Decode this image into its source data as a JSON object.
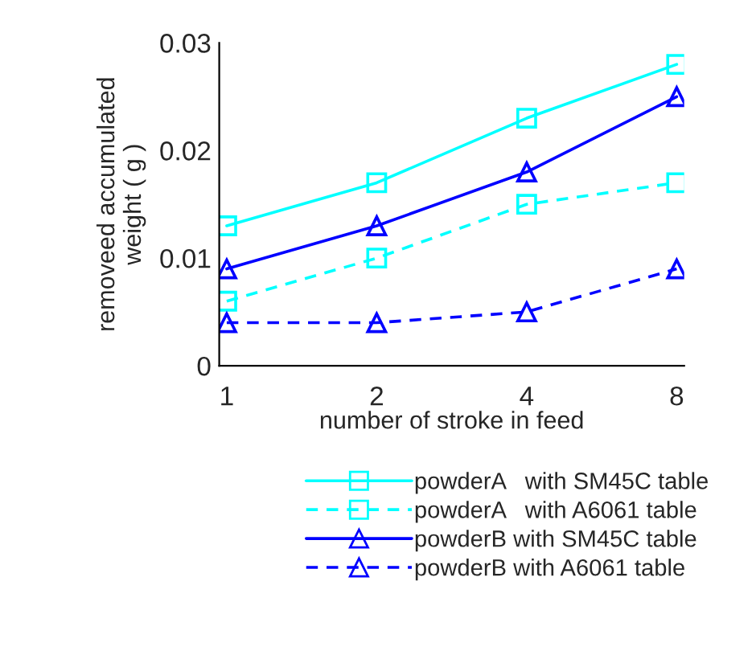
{
  "chart_data": {
    "type": "line",
    "xlabel": "number of stroke in feed",
    "ylabel": "removeed accumulated\nweight ( g )",
    "categories": [
      "1",
      "2",
      "4",
      "8"
    ],
    "ylim": [
      0,
      0.03
    ],
    "yticks": [
      {
        "value": 0,
        "label": "0"
      },
      0.01,
      0.02,
      0.03
    ],
    "grid": false,
    "legend": "bottom",
    "series": [
      {
        "name": "powderA   with SM45C table",
        "color": "#00ffff",
        "marker": "square",
        "line_style": "solid",
        "values": [
          0.013,
          0.017,
          0.023,
          0.028
        ]
      },
      {
        "name": "powderA   with A6061 table",
        "color": "#00ffff",
        "marker": "square",
        "line_style": "dashed",
        "values": [
          0.006,
          0.01,
          0.015,
          0.017
        ]
      },
      {
        "name": "powderB with SM45C table",
        "color": "#0000ff",
        "marker": "triangle",
        "line_style": "solid",
        "values": [
          0.009,
          0.013,
          0.018,
          0.025
        ]
      },
      {
        "name": "powderB with A6061 table",
        "color": "#0000ff",
        "marker": "triangle",
        "line_style": "dashed",
        "values": [
          0.004,
          0.004,
          0.005,
          0.009
        ]
      }
    ]
  }
}
